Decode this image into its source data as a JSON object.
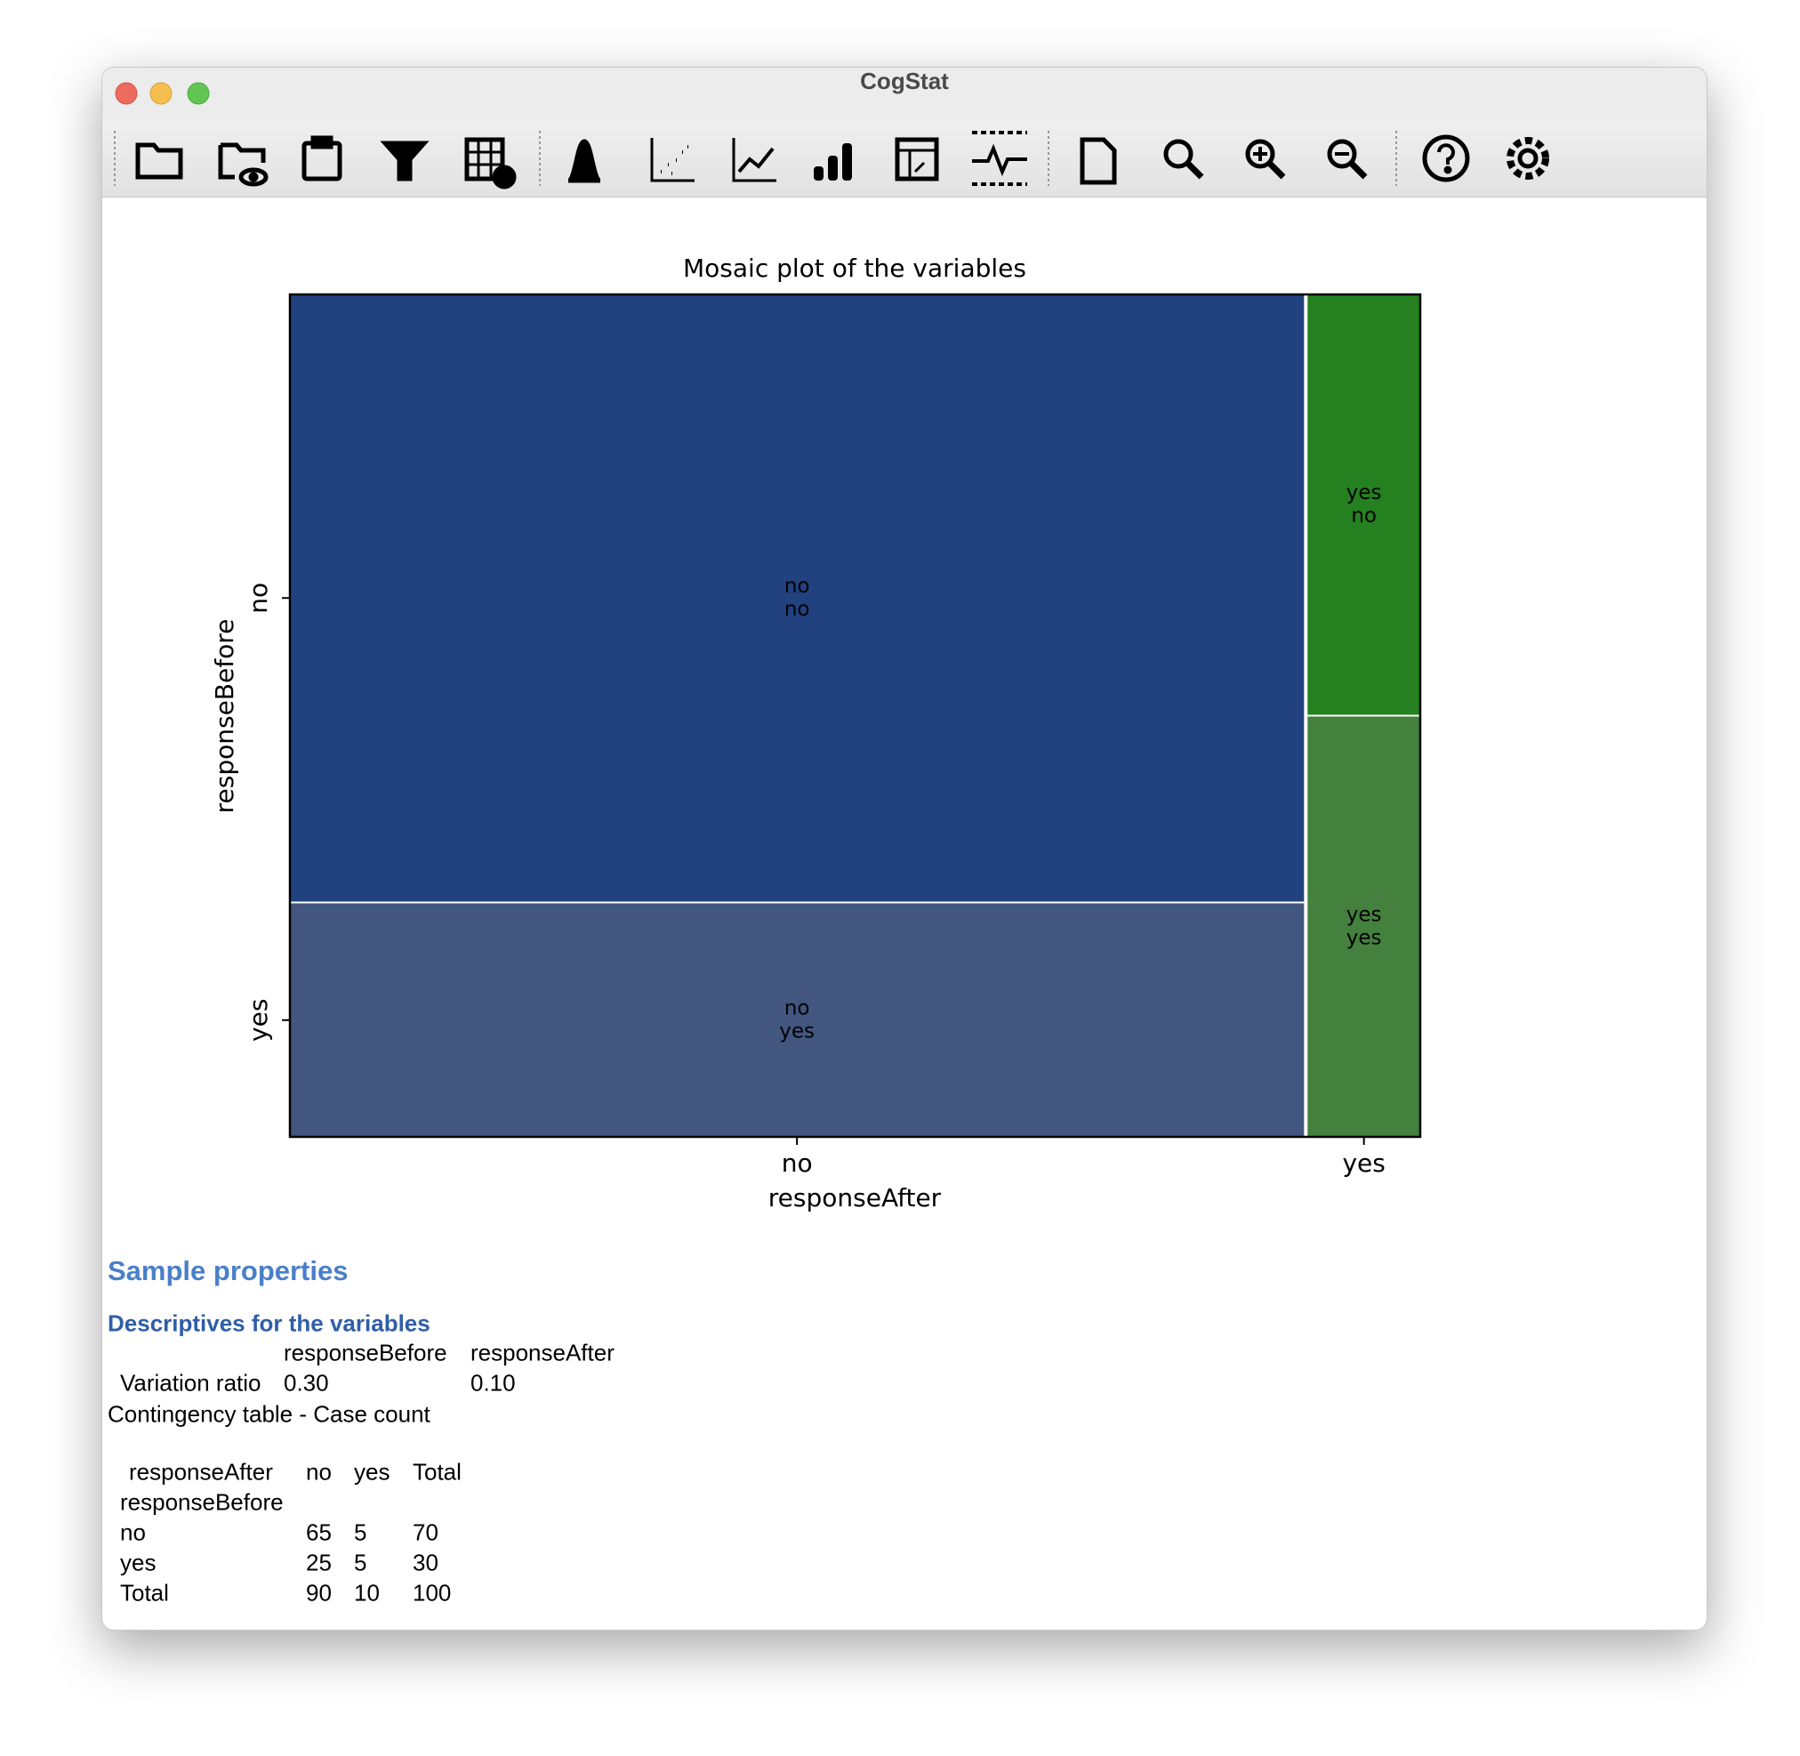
{
  "window": {
    "title": "CogStat"
  },
  "chart_data": {
    "type": "mosaic",
    "title": "Mosaic plot of the variables",
    "x_label": "responseAfter",
    "y_label": "responseBefore",
    "x_categories": [
      "no",
      "yes"
    ],
    "y_categories": [
      "no",
      "yes"
    ],
    "values": [
      [
        65,
        5
      ],
      [
        25,
        5
      ]
    ],
    "colors": [
      [
        "#21427f",
        "#25801f"
      ],
      [
        "#42567f",
        "#44803e"
      ]
    ]
  },
  "document": {
    "heading": "Sample properties",
    "subheading": "Descriptives for the variables",
    "descriptives": {
      "columns": [
        "responseBefore",
        "responseAfter"
      ],
      "rows": [
        [
          "Variation ratio",
          "0.30",
          "0.10"
        ]
      ]
    },
    "contingency": {
      "title": "Contingency table - Case count",
      "column_header": "responseAfter",
      "columns": [
        "no",
        "yes",
        "Total"
      ],
      "row_header": "responseBefore",
      "rows": [
        [
          "no",
          65,
          5,
          70
        ],
        [
          "yes",
          25,
          5,
          30
        ],
        [
          "Total",
          90,
          10,
          100
        ]
      ]
    }
  }
}
